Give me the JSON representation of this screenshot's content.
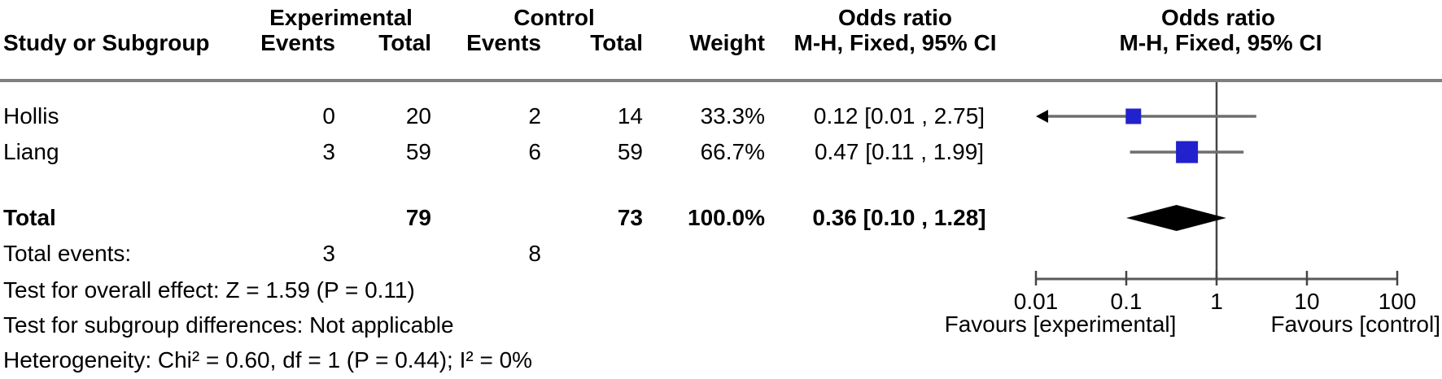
{
  "table": {
    "group_headers": {
      "experimental": "Experimental",
      "control": "Control",
      "odds_ratio_text": "Odds ratio",
      "odds_ratio_plot": "Odds ratio"
    },
    "column_headers": {
      "study": "Study or Subgroup",
      "exp_events": "Events",
      "exp_total": "Total",
      "ctl_events": "Events",
      "ctl_total": "Total",
      "weight": "Weight",
      "ci_text": "M-H, Fixed, 95% CI",
      "ci_plot": "M-H, Fixed, 95% CI"
    },
    "rows": [
      {
        "study": "Hollis",
        "exp_events": "0",
        "exp_total": "20",
        "ctl_events": "2",
        "ctl_total": "14",
        "weight": "33.3%",
        "ci": "0.12 [0.01 , 2.75]"
      },
      {
        "study": "Liang",
        "exp_events": "3",
        "exp_total": "59",
        "ctl_events": "6",
        "ctl_total": "59",
        "weight": "66.7%",
        "ci": "0.47 [0.11 , 1.99]"
      }
    ],
    "total_row": {
      "label": "Total",
      "exp_total": "79",
      "ctl_total": "73",
      "weight": "100.0%",
      "ci": "0.36 [0.10 , 1.28]"
    },
    "total_events_row": {
      "label": "Total events:",
      "exp_events": "3",
      "ctl_events": "8"
    }
  },
  "footer": {
    "overall_effect": "Test for overall effect: Z = 1.59 (P = 0.11)",
    "subgroup_differences": "Test for subgroup differences: Not applicable",
    "heterogeneity": "Heterogeneity: Chi² = 0.60, df = 1 (P = 0.44); I² = 0%"
  },
  "axis": {
    "tick_labels": [
      "0.01",
      "0.1",
      "1",
      "10",
      "100"
    ],
    "favours_left": "Favours [experimental]",
    "favours_right": "Favours [control]"
  },
  "colors": {
    "marker_blue": "#2121cd",
    "diamond_black": "#000000",
    "whisker_gray": "#6e6e6e",
    "axis_gray": "#5a5a5a",
    "separator_gray": "#7f7f7f",
    "null_line_gray": "#454545"
  },
  "chart_data": {
    "type": "forest",
    "effect_measure": "Odds ratio",
    "method": "M-H, Fixed, 95% CI",
    "x_scale": "log10",
    "x_ticks": [
      0.01,
      0.1,
      1,
      10,
      100
    ],
    "xlim": [
      0.01,
      100
    ],
    "null_line": 1,
    "studies": [
      {
        "name": "Hollis",
        "exp_events": 0,
        "exp_total": 20,
        "ctl_events": 2,
        "ctl_total": 14,
        "weight_pct": 33.3,
        "or": 0.12,
        "ci_low": 0.01,
        "ci_high": 2.75,
        "left_arrow": true
      },
      {
        "name": "Liang",
        "exp_events": 3,
        "exp_total": 59,
        "ctl_events": 6,
        "ctl_total": 59,
        "weight_pct": 66.7,
        "or": 0.47,
        "ci_low": 0.11,
        "ci_high": 1.99,
        "left_arrow": false
      }
    ],
    "total": {
      "exp_total": 79,
      "ctl_total": 73,
      "exp_events": 3,
      "ctl_events": 8,
      "weight_pct": 100.0,
      "or": 0.36,
      "ci_low": 0.1,
      "ci_high": 1.28
    },
    "tests": {
      "overall_z": 1.59,
      "overall_p": 0.11,
      "chi2": 0.6,
      "df": 1,
      "chi2_p": 0.44,
      "i2_pct": 0
    },
    "legend": {
      "left": "Favours [experimental]",
      "right": "Favours [control]"
    }
  }
}
